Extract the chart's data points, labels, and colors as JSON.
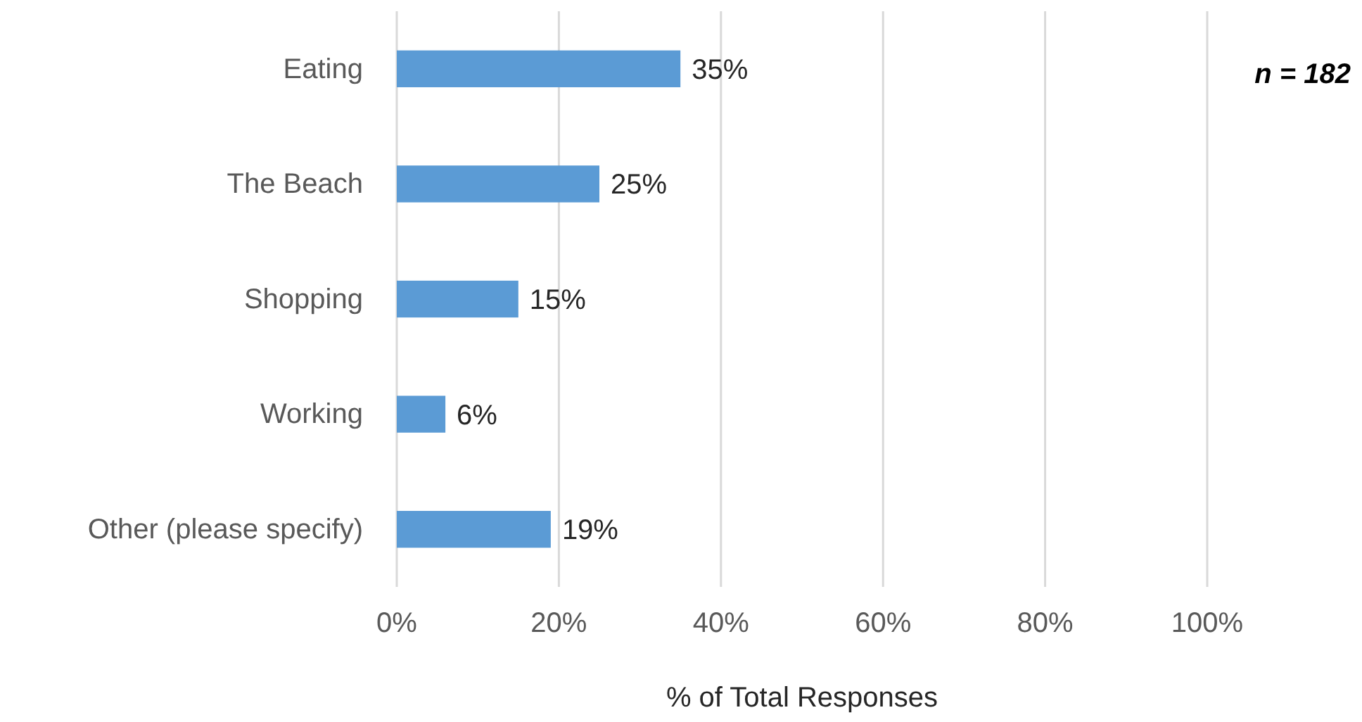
{
  "chart_data": {
    "type": "bar",
    "orientation": "horizontal",
    "categories": [
      "Eating",
      "The Beach",
      "Shopping",
      "Working",
      "Other (please specify)"
    ],
    "values": [
      35,
      25,
      15,
      6,
      19
    ],
    "color": "#5b9bd5",
    "value_labels": [
      "35%",
      "25%",
      "15%",
      "6%",
      "19%"
    ],
    "xlim": [
      0,
      100
    ],
    "xticks": [
      {
        "value": 0,
        "label": "0%"
      },
      {
        "value": 20,
        "label": "20%"
      },
      {
        "value": 40,
        "label": "40%"
      },
      {
        "value": 60,
        "label": "60%"
      },
      {
        "value": 80,
        "label": "80%"
      },
      {
        "value": 100,
        "label": "100%"
      }
    ],
    "xlabel": "% of Total Responses",
    "grid": "x",
    "annotations": [
      "n = 182"
    ]
  }
}
